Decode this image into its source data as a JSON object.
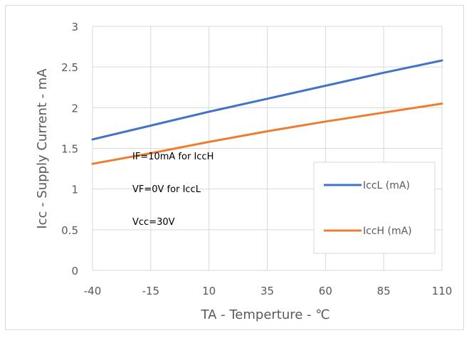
{
  "chart_data": {
    "type": "line",
    "xlabel": "TA - Temperture - ℃",
    "ylabel": "Icc - Supply Current - mA",
    "xlim": [
      -40,
      110
    ],
    "ylim": [
      0,
      3
    ],
    "x_ticks": [
      -40,
      -15,
      10,
      35,
      60,
      85,
      110
    ],
    "x_tick_labels": [
      "-40",
      "-15",
      "10",
      "35",
      "60",
      "85",
      "110"
    ],
    "y_ticks": [
      0,
      0.5,
      1,
      1.5,
      2,
      2.5,
      3
    ],
    "y_tick_labels": [
      "0",
      "0.5",
      "1",
      "1.5",
      "2",
      "2.5",
      "3"
    ],
    "grid": "vertical and horizontal",
    "legend_position": "bottom-right",
    "series": [
      {
        "name": "IccL (mA)",
        "color": "#4472c4",
        "x": [
          -40,
          -15,
          10,
          35,
          60,
          85,
          110
        ],
        "values": [
          1.61,
          1.78,
          1.95,
          2.11,
          2.27,
          2.43,
          2.58
        ]
      },
      {
        "name": "IccH (mA)",
        "color": "#ed7d31",
        "x": [
          -40,
          -15,
          10,
          35,
          60,
          85,
          110
        ],
        "values": [
          1.31,
          1.44,
          1.58,
          1.71,
          1.83,
          1.94,
          2.05
        ]
      }
    ],
    "annotations": [
      "IF=10mA for IccH",
      "VF=0V for IccL",
      "Vcc=30V"
    ]
  }
}
